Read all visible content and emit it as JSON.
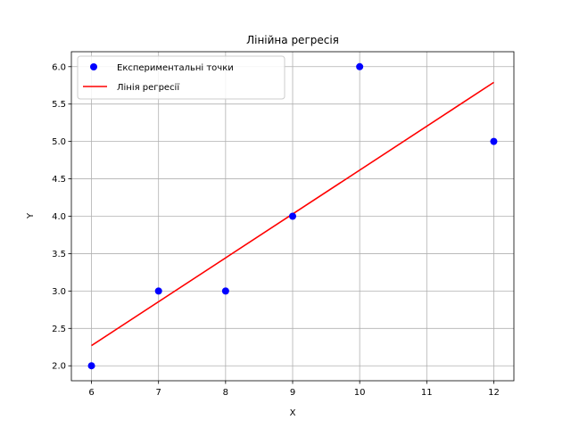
{
  "chart_data": {
    "type": "scatter",
    "title": "Лінійна регресія",
    "xlabel": "X",
    "ylabel": "Y",
    "xlim": [
      5.7,
      12.3
    ],
    "ylim": [
      1.8,
      6.2
    ],
    "xticks": [
      6,
      7,
      8,
      9,
      10,
      11,
      12
    ],
    "xtick_labels": [
      "6",
      "7",
      "8",
      "9",
      "10",
      "11",
      "12"
    ],
    "yticks": [
      2.0,
      2.5,
      3.0,
      3.5,
      4.0,
      4.5,
      5.0,
      5.5,
      6.0
    ],
    "ytick_labels": [
      "2.0",
      "2.5",
      "3.0",
      "3.5",
      "4.0",
      "4.5",
      "5.0",
      "5.5",
      "6.0"
    ],
    "grid": true,
    "legend_position": "top-left",
    "series": [
      {
        "name": "Експериментальні точки",
        "kind": "scatter",
        "color": "#0000ff",
        "points": [
          {
            "x": 6,
            "y": 2
          },
          {
            "x": 7,
            "y": 3
          },
          {
            "x": 8,
            "y": 3
          },
          {
            "x": 9,
            "y": 4
          },
          {
            "x": 10,
            "y": 6
          },
          {
            "x": 12,
            "y": 5
          }
        ]
      },
      {
        "name": "Лінія регресії",
        "kind": "line",
        "color": "#ff0000",
        "points": [
          {
            "x": 6,
            "y": 2.27
          },
          {
            "x": 12,
            "y": 5.79
          }
        ]
      }
    ]
  }
}
